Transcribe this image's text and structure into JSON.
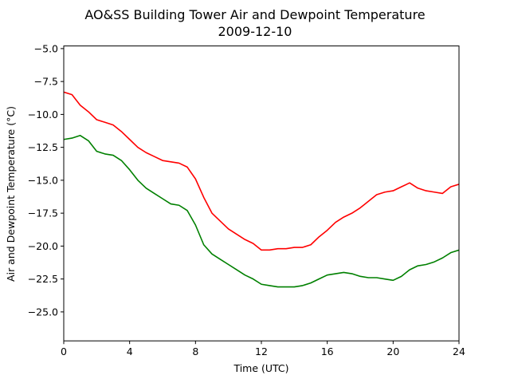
{
  "chart_data": {
    "type": "line",
    "title": "AO&SS Building Tower Air and Dewpoint Temperature",
    "subtitle": "2009-12-10",
    "xlabel": "Time (UTC)",
    "ylabel": "Air and Dewpoint Temperature (°C)",
    "xlim": [
      0,
      24
    ],
    "ylim": [
      -27.2,
      -4.8
    ],
    "xticks": [
      0,
      4,
      8,
      12,
      16,
      20,
      24
    ],
    "yticks": [
      -5.0,
      -7.5,
      -10.0,
      -12.5,
      -15.0,
      -17.5,
      -20.0,
      -22.5,
      -25.0
    ],
    "xtick_labels": [
      "0",
      "4",
      "8",
      "12",
      "16",
      "20",
      "24"
    ],
    "ytick_labels": [
      "−5.0",
      "−7.5",
      "−10.0",
      "−12.5",
      "−15.0",
      "−17.5",
      "−20.0",
      "−22.5",
      "−25.0"
    ],
    "grid": false,
    "series": [
      {
        "color": "#ff0000",
        "x": [
          0,
          0.5,
          1,
          1.5,
          2,
          2.5,
          3,
          3.5,
          4,
          4.5,
          5,
          5.5,
          6,
          6.5,
          7,
          7.5,
          8,
          8.5,
          9,
          9.5,
          10,
          10.5,
          11,
          11.5,
          12,
          12.5,
          13,
          13.5,
          14,
          14.5,
          15,
          15.5,
          16,
          16.5,
          17,
          17.5,
          18,
          18.5,
          19,
          19.5,
          20,
          20.5,
          21,
          21.5,
          22,
          22.5,
          23,
          23.5,
          24
        ],
        "y": [
          -8.3,
          -8.5,
          -9.3,
          -9.8,
          -10.4,
          -10.6,
          -10.8,
          -11.3,
          -11.9,
          -12.5,
          -12.9,
          -13.2,
          -13.5,
          -13.6,
          -13.7,
          -14.0,
          -14.9,
          -16.3,
          -17.5,
          -18.1,
          -18.7,
          -19.1,
          -19.5,
          -19.8,
          -20.3,
          -20.3,
          -20.2,
          -20.2,
          -20.1,
          -20.1,
          -19.9,
          -19.3,
          -18.8,
          -18.2,
          -17.8,
          -17.5,
          -17.1,
          -16.6,
          -16.1,
          -15.9,
          -15.8,
          -15.5,
          -15.2,
          -15.6,
          -15.8,
          -15.9,
          -16.0,
          -15.5,
          -15.3
        ]
      },
      {
        "color": "#008000",
        "x": [
          0,
          0.5,
          1,
          1.5,
          2,
          2.5,
          3,
          3.5,
          4,
          4.5,
          5,
          5.5,
          6,
          6.5,
          7,
          7.5,
          8,
          8.5,
          9,
          9.5,
          10,
          10.5,
          11,
          11.5,
          12,
          12.5,
          13,
          13.5,
          14,
          14.5,
          15,
          15.5,
          16,
          16.5,
          17,
          17.5,
          18,
          18.5,
          19,
          19.5,
          20,
          20.5,
          21,
          21.5,
          22,
          22.5,
          23,
          23.5,
          24
        ],
        "y": [
          -11.9,
          -11.8,
          -11.6,
          -12.0,
          -12.8,
          -13.0,
          -13.1,
          -13.5,
          -14.2,
          -15.0,
          -15.6,
          -16.0,
          -16.4,
          -16.8,
          -16.9,
          -17.3,
          -18.4,
          -19.9,
          -20.6,
          -21.0,
          -21.4,
          -21.8,
          -22.2,
          -22.5,
          -22.9,
          -23.0,
          -23.1,
          -23.1,
          -23.1,
          -23.0,
          -22.8,
          -22.5,
          -22.2,
          -22.1,
          -22.0,
          -22.1,
          -22.3,
          -22.4,
          -22.4,
          -22.5,
          -22.6,
          -22.3,
          -21.8,
          -21.5,
          -21.4,
          -21.2,
          -20.9,
          -20.5,
          -20.3
        ]
      }
    ]
  }
}
